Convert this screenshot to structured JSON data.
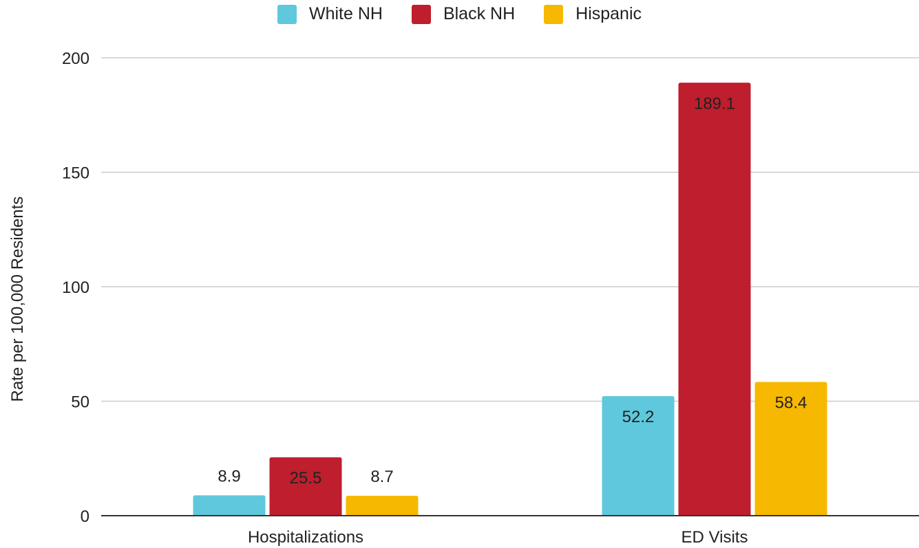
{
  "chart_data": {
    "type": "bar",
    "title": "",
    "xlabel": "",
    "ylabel": "Rate per 100,000 Residents",
    "ylim": [
      0,
      200
    ],
    "yticks": [
      0,
      50,
      100,
      150,
      200
    ],
    "categories": [
      "Hospitalizations",
      "ED Visits"
    ],
    "series": [
      {
        "name": "White NH",
        "color": "#5FC8DC",
        "values": [
          8.9,
          52.2
        ],
        "labels": [
          "8.9",
          "52.2"
        ]
      },
      {
        "name": "Black NH",
        "color": "#BE1E2D",
        "values": [
          25.5,
          189.1
        ],
        "labels": [
          "25.5",
          "189.1"
        ]
      },
      {
        "name": "Hispanic",
        "color": "#F6B800",
        "values": [
          8.7,
          58.4
        ],
        "labels": [
          "8.7",
          "58.4"
        ]
      }
    ],
    "legend_position": "top-center",
    "grid": true
  }
}
